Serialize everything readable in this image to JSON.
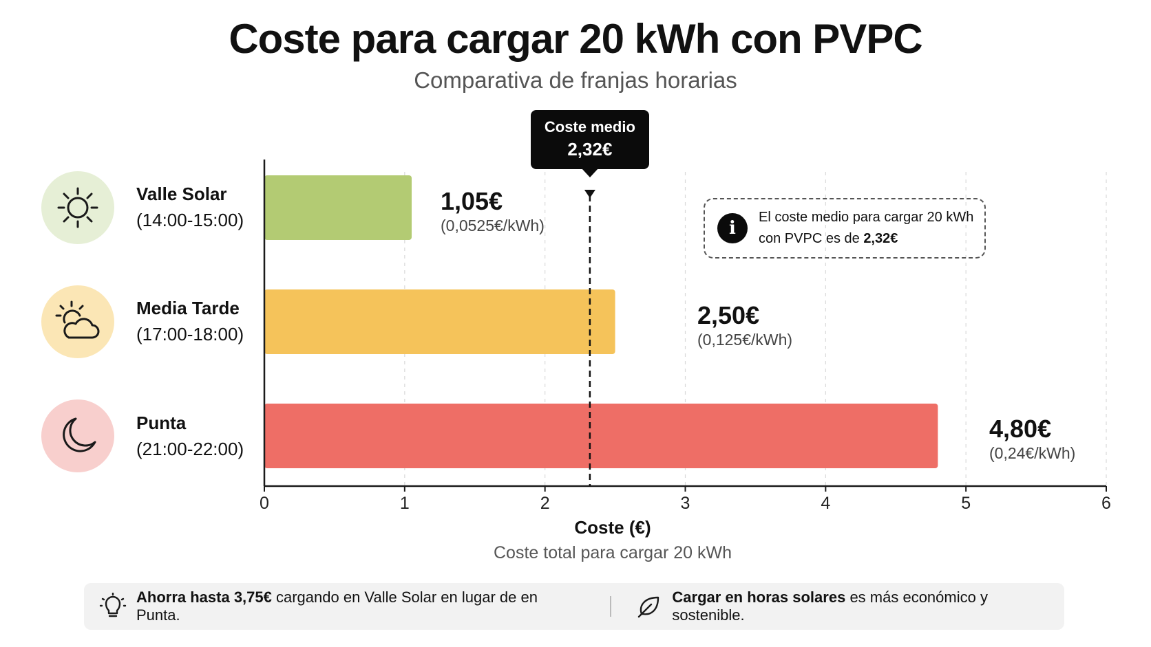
{
  "header": {
    "title": "Coste para cargar 20 kWh con PVPC",
    "subtitle": "Comparativa de franjas horarias"
  },
  "categories": [
    {
      "name": "Valle Solar",
      "range": "(14:00-15:00)",
      "icon": "sun-icon",
      "icon_bg": "#e6efd6"
    },
    {
      "name": "Media Tarde",
      "range": "(17:00-18:00)",
      "icon": "sun-cloud-icon",
      "icon_bg": "#fbe6b5"
    },
    {
      "name": "Punta",
      "range": "(21:00-22:00)",
      "icon": "moon-icon",
      "icon_bg": "#f8cfcd"
    }
  ],
  "chart_data": {
    "type": "bar",
    "orientation": "horizontal",
    "categories": [
      "Valle Solar (14:00-15:00)",
      "Media Tarde (17:00-18:00)",
      "Punta (21:00-22:00)"
    ],
    "values": [
      1.05,
      2.5,
      4.8
    ],
    "value_labels": [
      "1,05€",
      "2,50€",
      "4,80€"
    ],
    "unit_price_labels": [
      "(0,0525€/kWh)",
      "(0,125€/kWh)",
      "(0,24€/kWh)"
    ],
    "colors": [
      "#b3cb73",
      "#f5c35a",
      "#ee6e66"
    ],
    "xlim": [
      0,
      6
    ],
    "xticks": [
      0,
      1,
      2,
      3,
      4,
      5,
      6
    ],
    "xlabel": "Coste (€)",
    "xlabel_sub": "Coste total para cargar 20 kWh",
    "grid": true,
    "average": {
      "value": 2.32,
      "label": "Coste medio",
      "value_label": "2,32€"
    },
    "annotation": {
      "text_prefix": "El coste medio para cargar 20 kWh con PVPC es de",
      "text_bold": "2,32€"
    }
  },
  "footer": {
    "tip1_bold": "Ahorra hasta 3,75€",
    "tip1_rest": "cargando en Valle Solar en lugar de en Punta.",
    "tip2_bold": "Cargar en horas solares",
    "tip2_rest": "es más económico y sostenible."
  }
}
